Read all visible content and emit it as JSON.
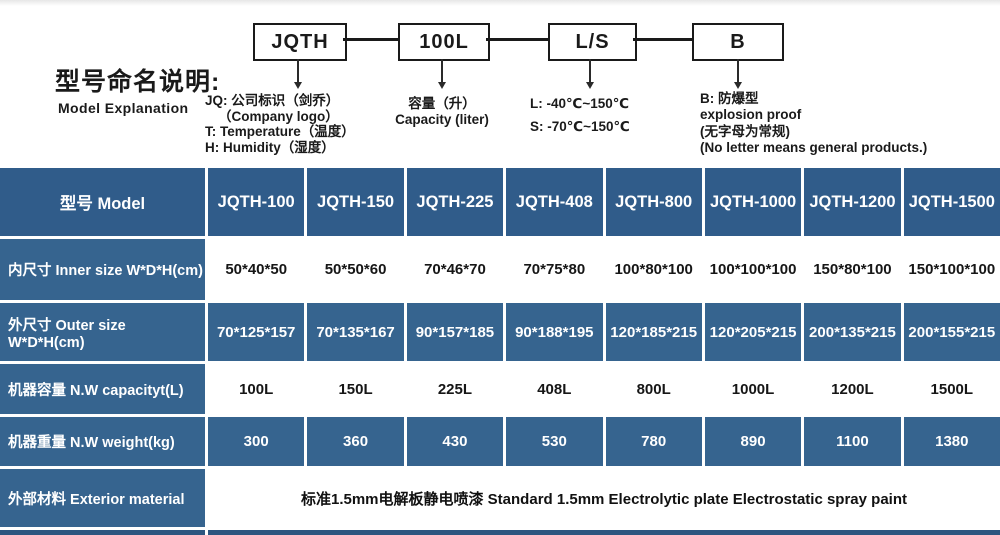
{
  "colors": {
    "header_blue": "#305c8a",
    "cell_blue": "#36648f",
    "bottom_strip_blue": "#2d5680",
    "line_black": "#1a1a1a",
    "text_dark": "#161616"
  },
  "explanation": {
    "title_zh": "型号命名说明:",
    "title_en": "Model Explanation",
    "boxes": [
      {
        "label": "JQTH"
      },
      {
        "label": "100L"
      },
      {
        "label": "L/S"
      },
      {
        "label": "B"
      }
    ],
    "notes": {
      "jqth": [
        "JQ: 公司标识（剑乔）",
        "（Company logo）",
        "T: Temperature（温度）",
        "H: Humidity（湿度）"
      ],
      "capacity": [
        "容量（升）",
        "Capacity (liter)"
      ],
      "ls": [
        "L: -40℃~150℃",
        "S: -70℃~150℃"
      ],
      "b": [
        "B: 防爆型",
        "explosion proof"
      ],
      "b_extra": [
        "(无字母为常规)",
        "(No letter means general products.)"
      ]
    }
  },
  "table": {
    "header_label": "型号 Model",
    "models": [
      "JQTH-100",
      "JQTH-150",
      "JQTH-225",
      "JQTH-408",
      "JQTH-800",
      "JQTH-1000",
      "JQTH-1200",
      "JQTH-1500"
    ],
    "rows": {
      "inner": {
        "label": "内尺寸 Inner size W*D*H(cm)",
        "values": [
          "50*40*50",
          "50*50*60",
          "70*46*70",
          "70*75*80",
          "100*80*100",
          "100*100*100",
          "150*80*100",
          "150*100*100"
        ]
      },
      "outer": {
        "label": "外尺寸 Outer size W*D*H(cm)",
        "values": [
          "70*125*157",
          "70*135*167",
          "90*157*185",
          "90*188*195",
          "120*185*215",
          "120*205*215",
          "200*135*215",
          "200*155*215"
        ]
      },
      "capacity": {
        "label": "机器容量 N.W capacityt(L)",
        "values": [
          "100L",
          "150L",
          "225L",
          "408L",
          "800L",
          "1000L",
          "1200L",
          "1500L"
        ]
      },
      "weight": {
        "label": "机器重量 N.W weight(kg)",
        "values": [
          "300",
          "360",
          "430",
          "530",
          "780",
          "890",
          "1100",
          "1380"
        ]
      },
      "exterior": {
        "label": "外部材料 Exterior material",
        "value": "标准1.5mm电解板静电喷漆  Standard 1.5mm Electrolytic plate Electrostatic spray paint"
      }
    }
  }
}
